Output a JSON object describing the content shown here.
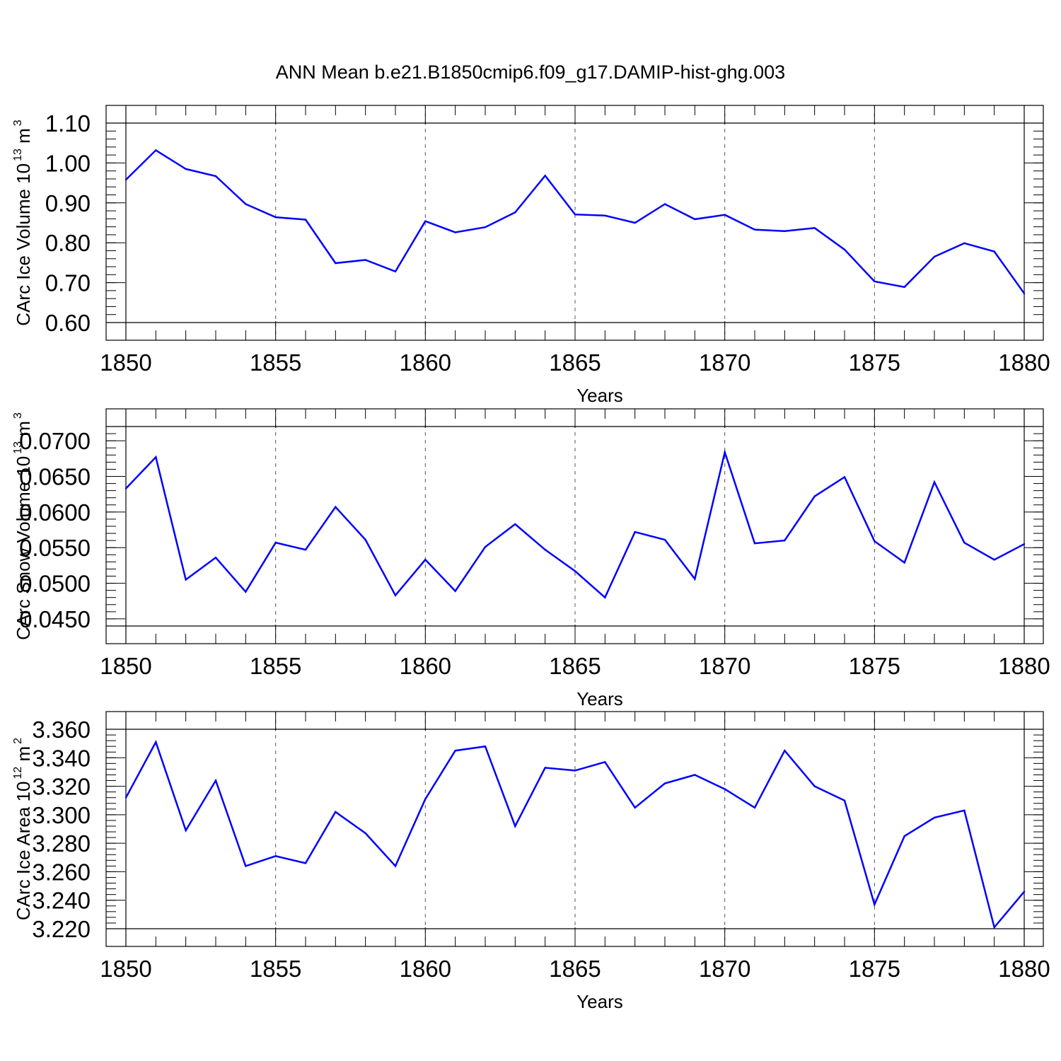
{
  "figure": {
    "title": "ANN Mean b.e21.B1850cmip6.f09_g17.DAMIP-hist-ghg.003",
    "line_color": "#0000ff"
  },
  "chart_data": [
    {
      "type": "line",
      "title": "",
      "xlabel": "Years",
      "ylabel": "CArc Ice Volume 10",
      "ylabel_exp": "13",
      "ylabel_unit": " m",
      "ylabel_unit_exp": "3",
      "xlim": [
        1850,
        1880
      ],
      "ylim": [
        0.6,
        1.1
      ],
      "xticks": [
        1850,
        1855,
        1860,
        1865,
        1870,
        1875,
        1880
      ],
      "yticks": [
        0.6,
        0.7,
        0.8,
        0.9,
        1.0,
        1.1
      ],
      "ytick_labels": [
        "0.60",
        "0.70",
        "0.80",
        "0.90",
        "1.00",
        "1.10"
      ],
      "y_minor_step": 0.02,
      "grid": "vertical dashed at major x ticks",
      "x": [
        1850,
        1851,
        1852,
        1853,
        1854,
        1855,
        1856,
        1857,
        1858,
        1859,
        1860,
        1861,
        1862,
        1863,
        1864,
        1865,
        1866,
        1867,
        1868,
        1869,
        1870,
        1871,
        1872,
        1873,
        1874,
        1875,
        1876,
        1877,
        1878,
        1879,
        1880
      ],
      "y": [
        0.958,
        1.032,
        0.985,
        0.967,
        0.897,
        0.864,
        0.858,
        0.749,
        0.757,
        0.728,
        0.854,
        0.826,
        0.839,
        0.876,
        0.968,
        0.871,
        0.868,
        0.85,
        0.897,
        0.859,
        0.87,
        0.833,
        0.829,
        0.837,
        0.783,
        0.703,
        0.689,
        0.765,
        0.799,
        0.778,
        0.673
      ]
    },
    {
      "type": "line",
      "title": "",
      "xlabel": "Years",
      "ylabel": "CArc Snow Volume 10",
      "ylabel_exp": "13",
      "ylabel_unit": " m",
      "ylabel_unit_exp": "3",
      "xlim": [
        1850,
        1880
      ],
      "ylim": [
        0.044,
        0.072
      ],
      "xticks": [
        1850,
        1855,
        1860,
        1865,
        1870,
        1875,
        1880
      ],
      "yticks": [
        0.045,
        0.05,
        0.055,
        0.06,
        0.065,
        0.07
      ],
      "ytick_labels": [
        "0.0450",
        "0.0500",
        "0.0550",
        "0.0600",
        "0.0650",
        "0.0700"
      ],
      "y_minor_step": 0.001,
      "grid": "vertical dashed at major x ticks",
      "x": [
        1850,
        1851,
        1852,
        1853,
        1854,
        1855,
        1856,
        1857,
        1858,
        1859,
        1860,
        1861,
        1862,
        1863,
        1864,
        1865,
        1866,
        1867,
        1868,
        1869,
        1870,
        1871,
        1872,
        1873,
        1874,
        1875,
        1876,
        1877,
        1878,
        1879,
        1880
      ],
      "y": [
        0.0633,
        0.0677,
        0.0505,
        0.0536,
        0.0488,
        0.0557,
        0.0547,
        0.0607,
        0.0561,
        0.0483,
        0.0533,
        0.0489,
        0.0551,
        0.0583,
        0.0547,
        0.0517,
        0.048,
        0.0572,
        0.0561,
        0.0506,
        0.0684,
        0.0556,
        0.056,
        0.0622,
        0.0649,
        0.0559,
        0.0529,
        0.0642,
        0.0557,
        0.0533,
        0.0555
      ]
    },
    {
      "type": "line",
      "title": "",
      "xlabel": "Years",
      "ylabel": "CArc Ice Area 10",
      "ylabel_exp": "12",
      "ylabel_unit": " m",
      "ylabel_unit_exp": "2",
      "xlim": [
        1850,
        1880
      ],
      "ylim": [
        3.22,
        3.36
      ],
      "xticks": [
        1850,
        1855,
        1860,
        1865,
        1870,
        1875,
        1880
      ],
      "yticks": [
        3.22,
        3.24,
        3.26,
        3.28,
        3.3,
        3.32,
        3.34,
        3.36
      ],
      "ytick_labels": [
        "3.220",
        "3.240",
        "3.260",
        "3.280",
        "3.300",
        "3.320",
        "3.340",
        "3.360"
      ],
      "y_minor_step": 0.004,
      "grid": "vertical dashed at major x ticks",
      "x": [
        1850,
        1851,
        1852,
        1853,
        1854,
        1855,
        1856,
        1857,
        1858,
        1859,
        1860,
        1861,
        1862,
        1863,
        1864,
        1865,
        1866,
        1867,
        1868,
        1869,
        1870,
        1871,
        1872,
        1873,
        1874,
        1875,
        1876,
        1877,
        1878,
        1879,
        1880
      ],
      "y": [
        3.312,
        3.351,
        3.289,
        3.324,
        3.264,
        3.271,
        3.266,
        3.302,
        3.287,
        3.264,
        3.311,
        3.345,
        3.348,
        3.292,
        3.333,
        3.331,
        3.337,
        3.305,
        3.322,
        3.328,
        3.318,
        3.305,
        3.345,
        3.32,
        3.31,
        3.237,
        3.285,
        3.298,
        3.303,
        3.221,
        3.246
      ]
    }
  ]
}
